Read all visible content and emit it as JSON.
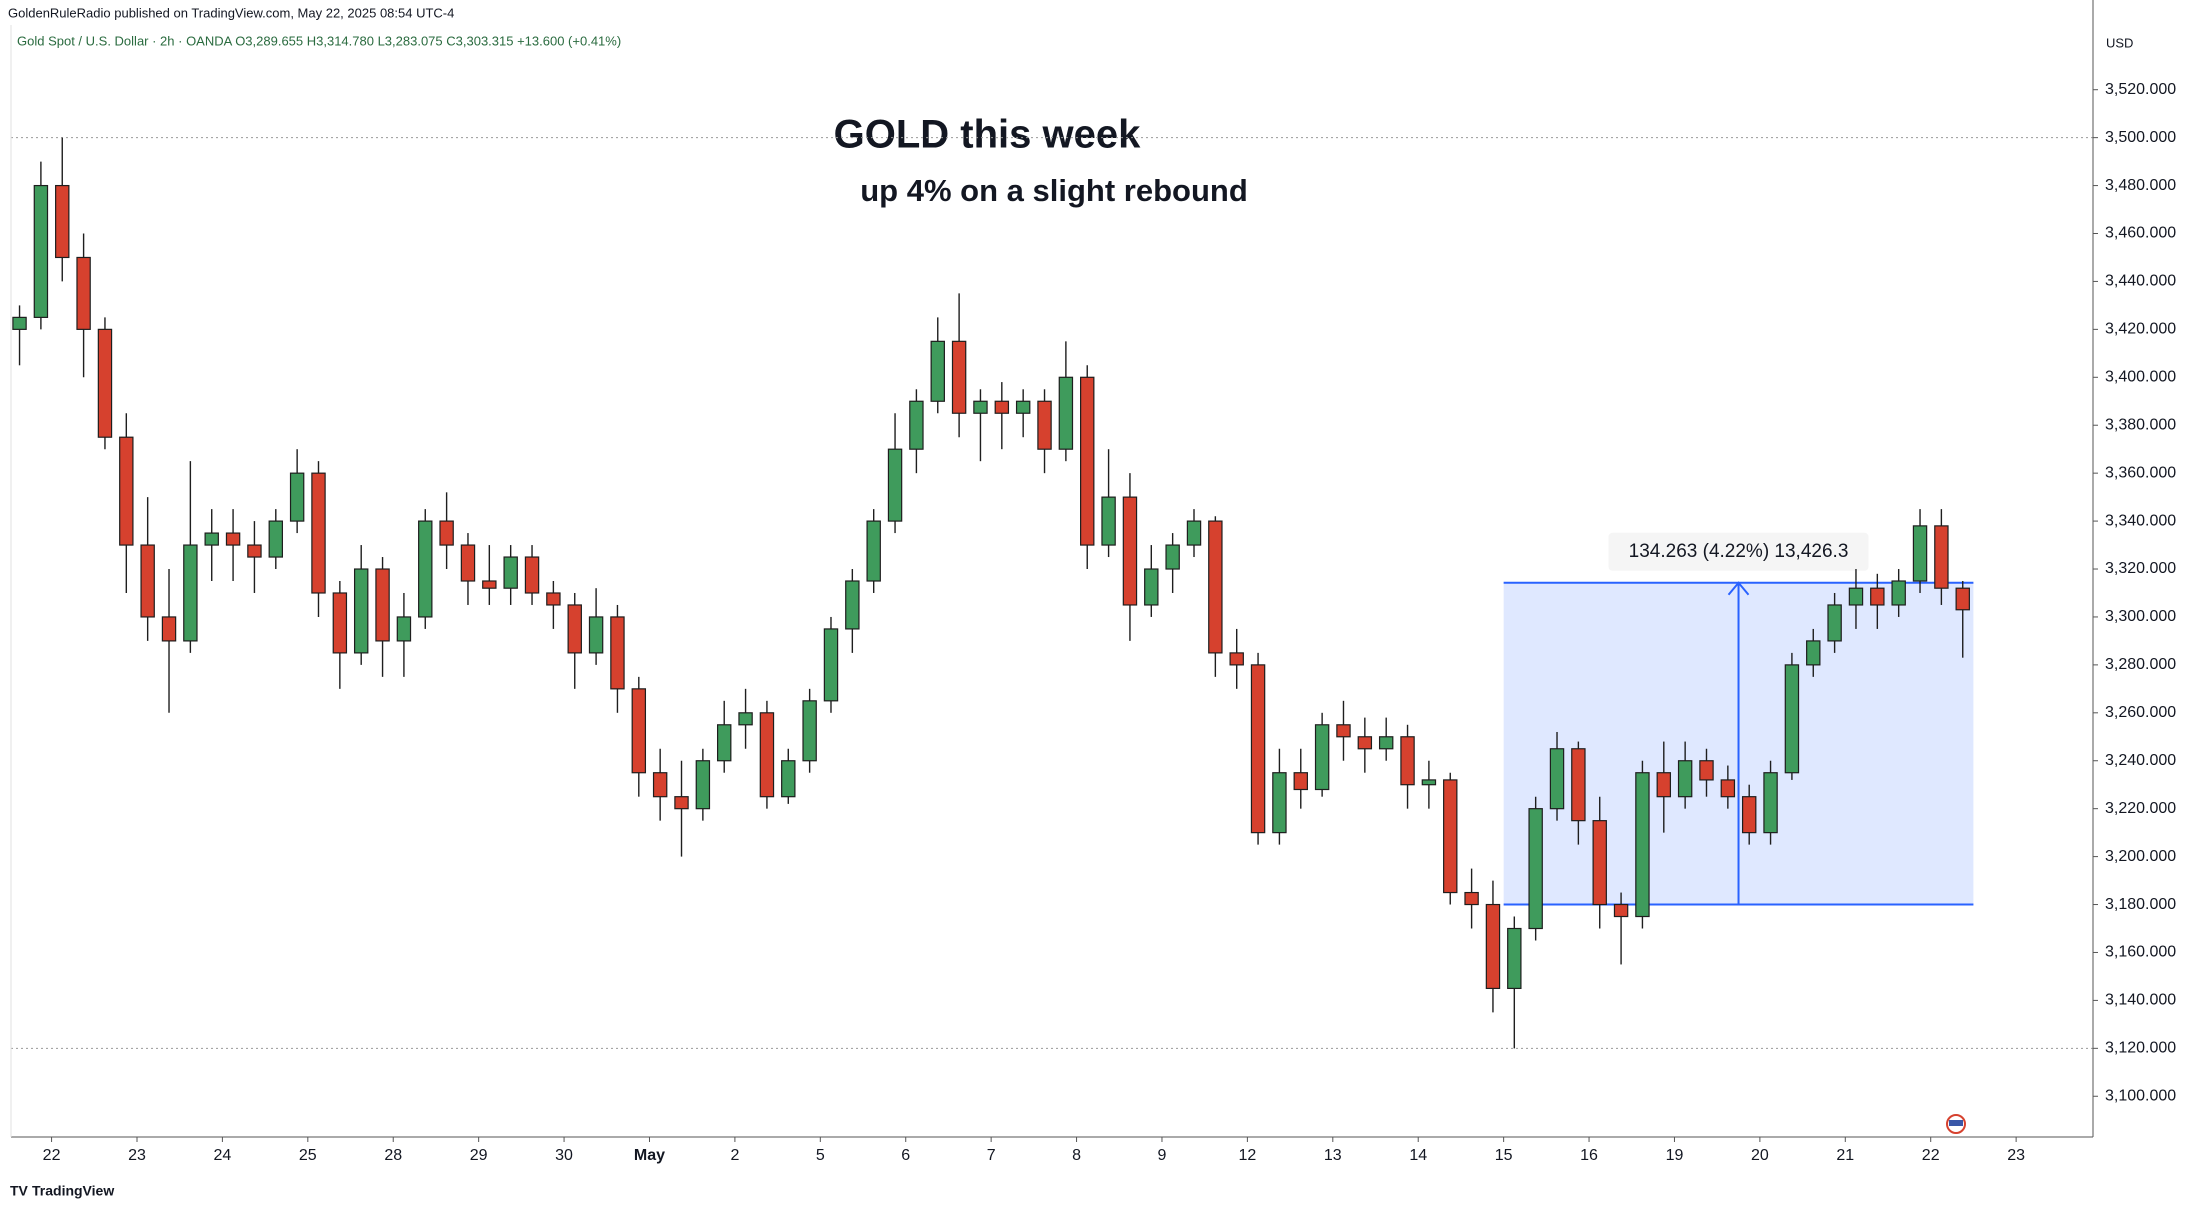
{
  "chart_data": {
    "type": "candlestick",
    "attribution": "GoldenRuleRadio published on TradingView.com, May 22, 2025 08:54 UTC-4",
    "symbol_line": "Gold Spot / U.S. Dollar · 2h · OANDA  O3,289.655 H3,314.780 L3,283.075 C3,303.315 +13.600 (+0.41%)",
    "title": "GOLD this week",
    "subtitle": "up 4% on a slight rebound",
    "currency": "USD",
    "brand": "TradingView",
    "up_color": "#3f9b5c",
    "down_color": "#d6412e",
    "outline_color": "#1e1e1e",
    "grid": false,
    "xlim": [
      -0.475,
      23.9
    ],
    "ylim": [
      3083,
      3547
    ],
    "xticks": [
      {
        "value": 0,
        "label": "22"
      },
      {
        "value": 1,
        "label": "23"
      },
      {
        "value": 2,
        "label": "24"
      },
      {
        "value": 3,
        "label": "25"
      },
      {
        "value": 4,
        "label": "28"
      },
      {
        "value": 5,
        "label": "29"
      },
      {
        "value": 6,
        "label": "30"
      },
      {
        "value": 7,
        "label": "May"
      },
      {
        "value": 8,
        "label": "2"
      },
      {
        "value": 9,
        "label": "5"
      },
      {
        "value": 10,
        "label": "6"
      },
      {
        "value": 11,
        "label": "7"
      },
      {
        "value": 12,
        "label": "8"
      },
      {
        "value": 13,
        "label": "9"
      },
      {
        "value": 14,
        "label": "12"
      },
      {
        "value": 15,
        "label": "13"
      },
      {
        "value": 16,
        "label": "14"
      },
      {
        "value": 17,
        "label": "15"
      },
      {
        "value": 18,
        "label": "16"
      },
      {
        "value": 19,
        "label": "19"
      },
      {
        "value": 20,
        "label": "20"
      },
      {
        "value": 21,
        "label": "21"
      },
      {
        "value": 22,
        "label": "22"
      },
      {
        "value": 23,
        "label": "23"
      }
    ],
    "yticks": [
      {
        "value": 3100,
        "label": "3,100.000"
      },
      {
        "value": 3120,
        "label": "3,120.000"
      },
      {
        "value": 3140,
        "label": "3,140.000"
      },
      {
        "value": 3160,
        "label": "3,160.000"
      },
      {
        "value": 3180,
        "label": "3,180.000"
      },
      {
        "value": 3200,
        "label": "3,200.000"
      },
      {
        "value": 3220,
        "label": "3,220.000"
      },
      {
        "value": 3240,
        "label": "3,240.000"
      },
      {
        "value": 3260,
        "label": "3,260.000"
      },
      {
        "value": 3280,
        "label": "3,280.000"
      },
      {
        "value": 3300,
        "label": "3,300.000"
      },
      {
        "value": 3320,
        "label": "3,320.000"
      },
      {
        "value": 3340,
        "label": "3,340.000"
      },
      {
        "value": 3360,
        "label": "3,360.000"
      },
      {
        "value": 3380,
        "label": "3,380.000"
      },
      {
        "value": 3400,
        "label": "3,400.000"
      },
      {
        "value": 3420,
        "label": "3,420.000"
      },
      {
        "value": 3440,
        "label": "3,440.000"
      },
      {
        "value": 3460,
        "label": "3,460.000"
      },
      {
        "value": 3480,
        "label": "3,480.000"
      },
      {
        "value": 3500,
        "label": "3,500.000"
      },
      {
        "value": 3520,
        "label": "3,520.000"
      }
    ],
    "reference_lines": [
      3500,
      3120
    ],
    "measure": {
      "x": [
        17,
        22.5
      ],
      "y": [
        3180,
        3314.263
      ],
      "arrow_x": 19.75,
      "label": "134.263 (4.22%) 13,426.3"
    },
    "x": [
      -0.375,
      -0.125,
      0.125,
      0.375,
      0.625,
      0.875,
      1.125,
      1.375,
      1.625,
      1.875,
      2.125,
      2.375,
      2.625,
      2.875,
      3.125,
      3.375,
      3.625,
      3.875,
      4.125,
      4.375,
      4.625,
      4.875,
      5.125,
      5.375,
      5.625,
      5.875,
      6.125,
      6.375,
      6.625,
      6.875,
      7.125,
      7.375,
      7.625,
      7.875,
      8.125,
      8.375,
      8.625,
      8.875,
      9.125,
      9.375,
      9.625,
      9.875,
      10.125,
      10.375,
      10.625,
      10.875,
      11.125,
      11.375,
      11.625,
      11.875,
      12.125,
      12.375,
      12.625,
      12.875,
      13.125,
      13.375,
      13.625,
      13.875,
      14.125,
      14.375,
      14.625,
      14.875,
      15.125,
      15.375,
      15.625,
      15.875,
      16.125,
      16.375,
      16.625,
      16.875,
      17.125,
      17.375,
      17.625,
      17.875,
      18.125,
      18.375,
      18.625,
      18.875,
      19.125,
      19.375,
      19.625,
      19.875,
      20.125,
      20.375,
      20.625,
      20.875,
      21.125,
      21.375,
      21.625,
      21.875,
      22.125,
      22.375
    ],
    "open": [
      3420,
      3425,
      3480,
      3450,
      3420,
      3375,
      3330,
      3300,
      3290,
      3330,
      3335,
      3330,
      3325,
      3340,
      3360,
      3310,
      3285,
      3320,
      3290,
      3300,
      3340,
      3330,
      3315,
      3312,
      3325,
      3310,
      3305,
      3285,
      3300,
      3270,
      3235,
      3225,
      3220,
      3240,
      3255,
      3260,
      3225,
      3240,
      3265,
      3295,
      3315,
      3340,
      3370,
      3390,
      3415,
      3385,
      3390,
      3385,
      3390,
      3370,
      3400,
      3330,
      3350,
      3305,
      3320,
      3330,
      3340,
      3285,
      3280,
      3210,
      3235,
      3228,
      3255,
      3250,
      3245,
      3250,
      3230,
      3232,
      3185,
      3180,
      3145,
      3170,
      3220,
      3245,
      3215,
      3180,
      3175,
      3235,
      3225,
      3240,
      3232,
      3225,
      3210,
      3235,
      3280,
      3290,
      3305,
      3312,
      3305,
      3315,
      3338,
      3312
    ],
    "high": [
      3430,
      3490,
      3500,
      3460,
      3425,
      3385,
      3350,
      3320,
      3365,
      3345,
      3345,
      3340,
      3345,
      3370,
      3365,
      3315,
      3330,
      3325,
      3310,
      3345,
      3352,
      3335,
      3330,
      3330,
      3330,
      3315,
      3310,
      3312,
      3305,
      3275,
      3245,
      3240,
      3245,
      3265,
      3270,
      3265,
      3245,
      3270,
      3300,
      3320,
      3345,
      3385,
      3395,
      3425,
      3435,
      3395,
      3398,
      3395,
      3395,
      3415,
      3405,
      3370,
      3360,
      3330,
      3335,
      3345,
      3342,
      3295,
      3285,
      3245,
      3245,
      3260,
      3265,
      3258,
      3258,
      3255,
      3240,
      3235,
      3195,
      3190,
      3175,
      3225,
      3252,
      3248,
      3225,
      3185,
      3240,
      3248,
      3248,
      3245,
      3238,
      3230,
      3240,
      3285,
      3295,
      3310,
      3320,
      3318,
      3320,
      3345,
      3345,
      3315
    ],
    "low": [
      3405,
      3420,
      3440,
      3400,
      3370,
      3310,
      3290,
      3260,
      3285,
      3315,
      3315,
      3310,
      3320,
      3335,
      3300,
      3270,
      3280,
      3275,
      3275,
      3295,
      3320,
      3305,
      3305,
      3305,
      3305,
      3295,
      3270,
      3280,
      3260,
      3225,
      3215,
      3200,
      3215,
      3235,
      3245,
      3220,
      3222,
      3235,
      3260,
      3285,
      3310,
      3335,
      3360,
      3385,
      3375,
      3365,
      3370,
      3375,
      3360,
      3365,
      3320,
      3325,
      3290,
      3300,
      3310,
      3325,
      3275,
      3270,
      3205,
      3205,
      3220,
      3225,
      3240,
      3235,
      3240,
      3220,
      3220,
      3180,
      3170,
      3135,
      3120,
      3165,
      3215,
      3205,
      3170,
      3155,
      3170,
      3210,
      3220,
      3225,
      3220,
      3205,
      3205,
      3232,
      3275,
      3285,
      3295,
      3295,
      3300,
      3310,
      3305,
      3283
    ],
    "close": [
      3425,
      3480,
      3450,
      3420,
      3375,
      3330,
      3300,
      3290,
      3330,
      3335,
      3330,
      3325,
      3340,
      3360,
      3310,
      3285,
      3320,
      3290,
      3300,
      3340,
      3330,
      3315,
      3312,
      3325,
      3310,
      3305,
      3285,
      3300,
      3270,
      3235,
      3225,
      3220,
      3240,
      3255,
      3260,
      3225,
      3240,
      3265,
      3295,
      3315,
      3340,
      3370,
      3390,
      3415,
      3385,
      3390,
      3385,
      3390,
      3370,
      3400,
      3330,
      3350,
      3305,
      3320,
      3330,
      3340,
      3285,
      3280,
      3210,
      3235,
      3228,
      3255,
      3250,
      3245,
      3250,
      3230,
      3232,
      3185,
      3180,
      3145,
      3170,
      3220,
      3245,
      3215,
      3180,
      3175,
      3235,
      3225,
      3240,
      3232,
      3225,
      3210,
      3235,
      3280,
      3290,
      3305,
      3312,
      3305,
      3315,
      3338,
      3312,
      3303
    ]
  }
}
